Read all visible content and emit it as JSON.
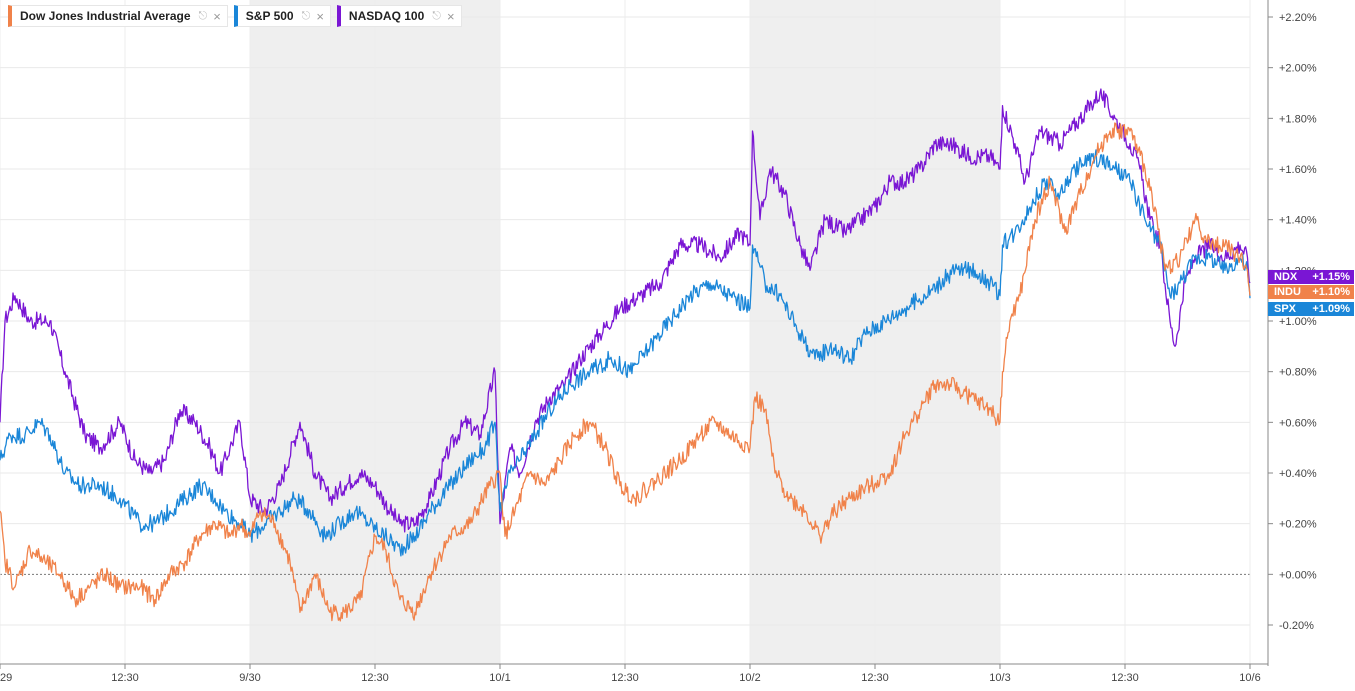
{
  "legend": [
    {
      "label": "Dow Jones Industrial Average",
      "color": "#f0824a",
      "icon": "pin-icon",
      "close": "×"
    },
    {
      "label": "S&P 500",
      "color": "#1a86d8",
      "icon": "pin-icon",
      "close": "×"
    },
    {
      "label": "NASDAQ 100",
      "color": "#7a16d4",
      "icon": "pin-icon",
      "close": "×"
    }
  ],
  "badges": [
    {
      "ticker": "NDX",
      "value": "+1.15%",
      "color": "#7a16d4"
    },
    {
      "ticker": "INDU",
      "value": "+1.10%",
      "color": "#f0824a"
    },
    {
      "ticker": "SPX",
      "value": "+1.09%",
      "color": "#1a86d8"
    }
  ],
  "chart_data": {
    "type": "line",
    "y_unit": "% change",
    "ylim": [
      -0.35,
      2.25
    ],
    "y_ticks": [
      -0.2,
      0.0,
      0.2,
      0.4,
      0.6,
      0.8,
      1.0,
      1.2,
      1.4,
      1.6,
      1.8,
      2.0,
      2.2
    ],
    "y_tick_labels": [
      "-0.20%",
      "+0.00%",
      "+0.20%",
      "+0.40%",
      "+0.60%",
      "+0.80%",
      "+1.00%",
      "+1.20%",
      "+1.40%",
      "+1.60%",
      "+1.80%",
      "+2.00%",
      "+2.20%"
    ],
    "x_range": [
      0,
      5
    ],
    "x_ticks": [
      0,
      0.5,
      1,
      1.5,
      2,
      2.5,
      3,
      3.5,
      4,
      4.5,
      5
    ],
    "x_tick_labels": [
      "29",
      "12:30",
      "9/30",
      "12:30",
      "10/1",
      "12:30",
      "10/2",
      "12:30",
      "10/3",
      "12:30",
      "10/6"
    ],
    "shaded_sessions": [
      [
        1,
        2
      ],
      [
        3,
        4
      ]
    ],
    "baseline": 0.0,
    "series": [
      {
        "name": "NASDAQ 100",
        "color": "#7a16d4",
        "points": [
          [
            0,
            0.6
          ],
          [
            0.02,
            1.0
          ],
          [
            0.06,
            1.1
          ],
          [
            0.12,
            1.0
          ],
          [
            0.2,
            1.0
          ],
          [
            0.26,
            0.8
          ],
          [
            0.34,
            0.55
          ],
          [
            0.4,
            0.5
          ],
          [
            0.48,
            0.6
          ],
          [
            0.54,
            0.45
          ],
          [
            0.6,
            0.4
          ],
          [
            0.66,
            0.45
          ],
          [
            0.72,
            0.65
          ],
          [
            0.78,
            0.6
          ],
          [
            0.84,
            0.5
          ],
          [
            0.88,
            0.4
          ],
          [
            0.92,
            0.5
          ],
          [
            0.96,
            0.6
          ],
          [
            1.0,
            0.3
          ],
          [
            1.06,
            0.25
          ],
          [
            1.12,
            0.35
          ],
          [
            1.2,
            0.6
          ],
          [
            1.26,
            0.4
          ],
          [
            1.32,
            0.3
          ],
          [
            1.38,
            0.35
          ],
          [
            1.44,
            0.4
          ],
          [
            1.5,
            0.35
          ],
          [
            1.56,
            0.25
          ],
          [
            1.6,
            0.2
          ],
          [
            1.66,
            0.2
          ],
          [
            1.72,
            0.3
          ],
          [
            1.8,
            0.5
          ],
          [
            1.86,
            0.6
          ],
          [
            1.92,
            0.55
          ],
          [
            1.98,
            0.8
          ],
          [
            2.0,
            0.2
          ],
          [
            2.04,
            0.5
          ],
          [
            2.08,
            0.4
          ],
          [
            2.14,
            0.6
          ],
          [
            2.2,
            0.7
          ],
          [
            2.26,
            0.75
          ],
          [
            2.32,
            0.85
          ],
          [
            2.4,
            0.95
          ],
          [
            2.48,
            1.05
          ],
          [
            2.56,
            1.1
          ],
          [
            2.64,
            1.15
          ],
          [
            2.72,
            1.3
          ],
          [
            2.8,
            1.3
          ],
          [
            2.88,
            1.25
          ],
          [
            2.96,
            1.35
          ],
          [
            3.0,
            1.3
          ],
          [
            3.01,
            1.75
          ],
          [
            3.04,
            1.4
          ],
          [
            3.08,
            1.6
          ],
          [
            3.14,
            1.5
          ],
          [
            3.2,
            1.3
          ],
          [
            3.24,
            1.2
          ],
          [
            3.3,
            1.4
          ],
          [
            3.38,
            1.35
          ],
          [
            3.44,
            1.4
          ],
          [
            3.5,
            1.45
          ],
          [
            3.56,
            1.55
          ],
          [
            3.62,
            1.55
          ],
          [
            3.68,
            1.6
          ],
          [
            3.74,
            1.7
          ],
          [
            3.8,
            1.7
          ],
          [
            3.88,
            1.65
          ],
          [
            3.96,
            1.65
          ],
          [
            4.0,
            1.6
          ],
          [
            4.01,
            1.85
          ],
          [
            4.06,
            1.7
          ],
          [
            4.1,
            1.55
          ],
          [
            4.16,
            1.75
          ],
          [
            4.24,
            1.7
          ],
          [
            4.32,
            1.8
          ],
          [
            4.4,
            1.9
          ],
          [
            4.46,
            1.8
          ],
          [
            4.52,
            1.7
          ],
          [
            4.56,
            1.6
          ],
          [
            4.6,
            1.4
          ],
          [
            4.64,
            1.3
          ],
          [
            4.68,
            1.0
          ],
          [
            4.7,
            0.9
          ],
          [
            4.74,
            1.15
          ],
          [
            4.78,
            1.25
          ],
          [
            4.84,
            1.3
          ],
          [
            4.9,
            1.25
          ],
          [
            4.96,
            1.3
          ],
          [
            4.99,
            1.25
          ],
          [
            5.0,
            1.15
          ]
        ]
      },
      {
        "name": "S&P 500",
        "color": "#1a86d8",
        "points": [
          [
            0,
            0.45
          ],
          [
            0.04,
            0.55
          ],
          [
            0.1,
            0.55
          ],
          [
            0.16,
            0.6
          ],
          [
            0.2,
            0.55
          ],
          [
            0.26,
            0.4
          ],
          [
            0.32,
            0.35
          ],
          [
            0.4,
            0.35
          ],
          [
            0.48,
            0.3
          ],
          [
            0.56,
            0.2
          ],
          [
            0.62,
            0.2
          ],
          [
            0.68,
            0.25
          ],
          [
            0.74,
            0.3
          ],
          [
            0.8,
            0.35
          ],
          [
            0.86,
            0.3
          ],
          [
            0.9,
            0.25
          ],
          [
            0.96,
            0.2
          ],
          [
            1.0,
            0.15
          ],
          [
            1.06,
            0.2
          ],
          [
            1.12,
            0.25
          ],
          [
            1.18,
            0.3
          ],
          [
            1.24,
            0.25
          ],
          [
            1.3,
            0.15
          ],
          [
            1.36,
            0.2
          ],
          [
            1.42,
            0.25
          ],
          [
            1.48,
            0.2
          ],
          [
            1.54,
            0.15
          ],
          [
            1.6,
            0.1
          ],
          [
            1.66,
            0.15
          ],
          [
            1.72,
            0.25
          ],
          [
            1.8,
            0.35
          ],
          [
            1.88,
            0.45
          ],
          [
            1.94,
            0.5
          ],
          [
            1.98,
            0.6
          ],
          [
            2.0,
            0.25
          ],
          [
            2.04,
            0.4
          ],
          [
            2.08,
            0.45
          ],
          [
            2.14,
            0.55
          ],
          [
            2.2,
            0.65
          ],
          [
            2.28,
            0.75
          ],
          [
            2.36,
            0.8
          ],
          [
            2.44,
            0.85
          ],
          [
            2.52,
            0.8
          ],
          [
            2.6,
            0.9
          ],
          [
            2.68,
            1.0
          ],
          [
            2.76,
            1.1
          ],
          [
            2.84,
            1.15
          ],
          [
            2.92,
            1.1
          ],
          [
            3.0,
            1.05
          ],
          [
            3.01,
            1.3
          ],
          [
            3.06,
            1.15
          ],
          [
            3.12,
            1.1
          ],
          [
            3.2,
            0.95
          ],
          [
            3.26,
            0.85
          ],
          [
            3.32,
            0.9
          ],
          [
            3.4,
            0.85
          ],
          [
            3.46,
            0.95
          ],
          [
            3.54,
            1.0
          ],
          [
            3.62,
            1.05
          ],
          [
            3.7,
            1.1
          ],
          [
            3.76,
            1.15
          ],
          [
            3.82,
            1.2
          ],
          [
            3.9,
            1.2
          ],
          [
            3.96,
            1.15
          ],
          [
            4.0,
            1.1
          ],
          [
            4.01,
            1.3
          ],
          [
            4.06,
            1.35
          ],
          [
            4.12,
            1.45
          ],
          [
            4.18,
            1.55
          ],
          [
            4.24,
            1.5
          ],
          [
            4.3,
            1.6
          ],
          [
            4.38,
            1.65
          ],
          [
            4.46,
            1.6
          ],
          [
            4.52,
            1.55
          ],
          [
            4.58,
            1.4
          ],
          [
            4.64,
            1.3
          ],
          [
            4.68,
            1.1
          ],
          [
            4.72,
            1.15
          ],
          [
            4.78,
            1.25
          ],
          [
            4.84,
            1.25
          ],
          [
            4.9,
            1.2
          ],
          [
            4.96,
            1.25
          ],
          [
            4.99,
            1.2
          ],
          [
            5.0,
            1.09
          ]
        ]
      },
      {
        "name": "Dow Jones Industrial Average",
        "color": "#f0824a",
        "points": [
          [
            0,
            0.25
          ],
          [
            0.02,
            0.05
          ],
          [
            0.06,
            -0.05
          ],
          [
            0.12,
            0.1
          ],
          [
            0.18,
            0.05
          ],
          [
            0.24,
            0.0
          ],
          [
            0.3,
            -0.1
          ],
          [
            0.36,
            -0.05
          ],
          [
            0.42,
            0.0
          ],
          [
            0.48,
            -0.05
          ],
          [
            0.56,
            -0.05
          ],
          [
            0.62,
            -0.1
          ],
          [
            0.68,
            0.0
          ],
          [
            0.74,
            0.05
          ],
          [
            0.8,
            0.15
          ],
          [
            0.86,
            0.2
          ],
          [
            0.92,
            0.15
          ],
          [
            0.96,
            0.2
          ],
          [
            1.0,
            0.15
          ],
          [
            1.04,
            0.25
          ],
          [
            1.1,
            0.2
          ],
          [
            1.16,
            0.05
          ],
          [
            1.2,
            -0.15
          ],
          [
            1.26,
            0.0
          ],
          [
            1.32,
            -0.15
          ],
          [
            1.38,
            -0.15
          ],
          [
            1.44,
            -0.1
          ],
          [
            1.5,
            0.15
          ],
          [
            1.54,
            0.1
          ],
          [
            1.6,
            -0.1
          ],
          [
            1.66,
            -0.15
          ],
          [
            1.72,
            0.0
          ],
          [
            1.8,
            0.15
          ],
          [
            1.88,
            0.2
          ],
          [
            1.96,
            0.35
          ],
          [
            2.0,
            0.4
          ],
          [
            2.02,
            0.15
          ],
          [
            2.06,
            0.25
          ],
          [
            2.12,
            0.4
          ],
          [
            2.18,
            0.35
          ],
          [
            2.24,
            0.45
          ],
          [
            2.3,
            0.55
          ],
          [
            2.36,
            0.6
          ],
          [
            2.42,
            0.5
          ],
          [
            2.48,
            0.35
          ],
          [
            2.54,
            0.3
          ],
          [
            2.6,
            0.35
          ],
          [
            2.66,
            0.4
          ],
          [
            2.72,
            0.45
          ],
          [
            2.8,
            0.55
          ],
          [
            2.86,
            0.6
          ],
          [
            2.92,
            0.55
          ],
          [
            3.0,
            0.5
          ],
          [
            3.02,
            0.7
          ],
          [
            3.06,
            0.65
          ],
          [
            3.1,
            0.4
          ],
          [
            3.16,
            0.3
          ],
          [
            3.22,
            0.25
          ],
          [
            3.28,
            0.15
          ],
          [
            3.34,
            0.25
          ],
          [
            3.4,
            0.3
          ],
          [
            3.48,
            0.35
          ],
          [
            3.56,
            0.4
          ],
          [
            3.62,
            0.55
          ],
          [
            3.68,
            0.65
          ],
          [
            3.74,
            0.75
          ],
          [
            3.8,
            0.75
          ],
          [
            3.88,
            0.7
          ],
          [
            3.96,
            0.65
          ],
          [
            4.0,
            0.6
          ],
          [
            4.01,
            0.8
          ],
          [
            4.04,
            1.0
          ],
          [
            4.08,
            1.1
          ],
          [
            4.14,
            1.4
          ],
          [
            4.2,
            1.55
          ],
          [
            4.26,
            1.35
          ],
          [
            4.32,
            1.5
          ],
          [
            4.38,
            1.65
          ],
          [
            4.44,
            1.75
          ],
          [
            4.52,
            1.75
          ],
          [
            4.58,
            1.6
          ],
          [
            4.62,
            1.45
          ],
          [
            4.66,
            1.2
          ],
          [
            4.72,
            1.25
          ],
          [
            4.78,
            1.4
          ],
          [
            4.84,
            1.3
          ],
          [
            4.9,
            1.3
          ],
          [
            4.96,
            1.25
          ],
          [
            4.99,
            1.2
          ],
          [
            5.0,
            1.1
          ]
        ]
      }
    ]
  }
}
